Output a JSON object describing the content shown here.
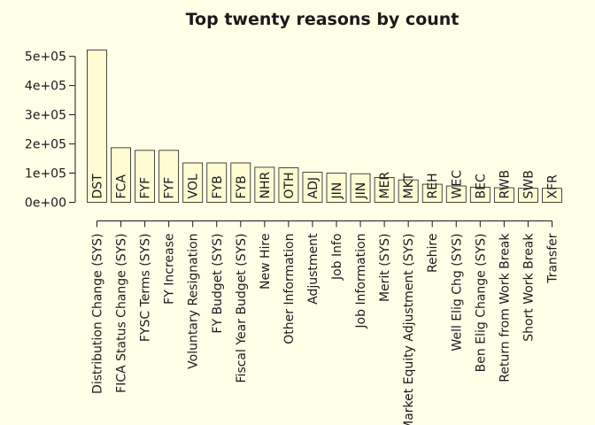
{
  "chart_data": {
    "type": "bar",
    "title": "Top twenty reasons by count",
    "xlabel": "",
    "ylabel": "",
    "ylim": [
      0,
      550000
    ],
    "yticks": [
      0,
      100000,
      200000,
      300000,
      400000,
      500000
    ],
    "ytick_labels": [
      "0e+00",
      "1e+05",
      "2e+05",
      "3e+05",
      "4e+05",
      "5e+05"
    ],
    "bar_color": "#fffcd4",
    "categories": [
      "Distribution Change (SYS)",
      "FICA Status Change (SYS)",
      "FYSC Terms (SYS)",
      "FY Increase",
      "Voluntary Resignation",
      "FY Budget (SYS)",
      "Fiscal Year Budget (SYS)",
      "New Hire",
      "Other Information",
      "Adjustment",
      "Job Info",
      "Job Information",
      "Merit (SYS)",
      "Market Equity Adjustment (SYS)",
      "Rehire",
      "Well Elig Chg (SYS)",
      "Ben Elig Change (SYS)",
      "Return from Work Break",
      "Short Work Break",
      "Transfer"
    ],
    "codes": [
      "DST",
      "FCA",
      "FYF",
      "FYF",
      "VOL",
      "FYB",
      "FYB",
      "NHR",
      "OTH",
      "ADJ",
      "JIN",
      "JIN",
      "MER",
      "MKT",
      "REH",
      "WEC",
      "BEC",
      "RWB",
      "SWB",
      "XFR"
    ],
    "values": [
      522000,
      187000,
      178000,
      178000,
      135000,
      135000,
      135000,
      120000,
      118000,
      103000,
      100000,
      98000,
      85000,
      77000,
      62000,
      56000,
      52000,
      50000,
      48000,
      48000
    ]
  }
}
